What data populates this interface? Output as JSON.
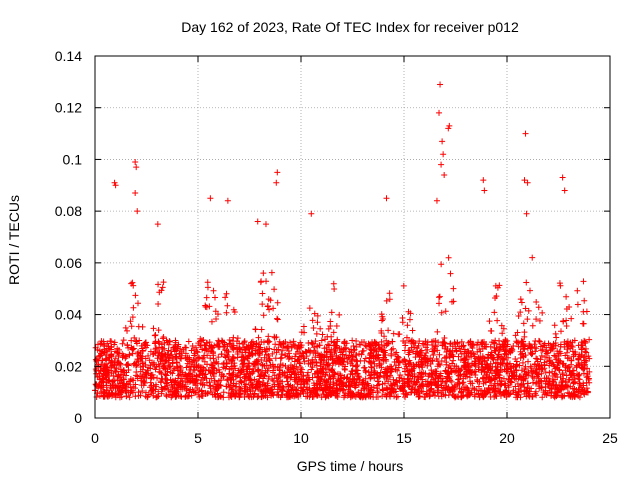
{
  "chart_data": {
    "type": "scatter",
    "title": "Day 162 of 2023, Rate Of TEC Index for receiver p012",
    "xlabel": "GPS time / hours",
    "ylabel": "ROTI / TECUs",
    "xlim": [
      0,
      25
    ],
    "ylim": [
      0,
      0.14
    ],
    "x_ticks": [
      0,
      5,
      10,
      15,
      20,
      25
    ],
    "x_tick_labels": [
      "0",
      "5",
      "10",
      "15",
      "20",
      "25"
    ],
    "y_ticks": [
      0,
      0.02,
      0.04,
      0.06,
      0.08,
      0.1,
      0.12,
      0.14
    ],
    "y_tick_labels": [
      "0",
      "0.02",
      "0.04",
      "0.06",
      "0.08",
      "0.1",
      "0.12",
      "0.14"
    ],
    "grid": true,
    "marker": "+",
    "marker_color": "#ff0000",
    "data_range_x": [
      0,
      24
    ],
    "baseline_band": [
      0.008,
      0.03
    ],
    "outliers": [
      {
        "x": 16.75,
        "y": 0.129
      },
      {
        "x": 16.7,
        "y": 0.118
      },
      {
        "x": 17.2,
        "y": 0.113
      },
      {
        "x": 17.15,
        "y": 0.112
      },
      {
        "x": 20.9,
        "y": 0.11
      },
      {
        "x": 16.85,
        "y": 0.107
      },
      {
        "x": 16.9,
        "y": 0.102
      },
      {
        "x": 16.8,
        "y": 0.098
      },
      {
        "x": 1.95,
        "y": 0.099
      },
      {
        "x": 2.0,
        "y": 0.097
      },
      {
        "x": 8.85,
        "y": 0.095
      },
      {
        "x": 14.15,
        "y": 0.085
      },
      {
        "x": 16.95,
        "y": 0.094
      },
      {
        "x": 18.85,
        "y": 0.092
      },
      {
        "x": 22.7,
        "y": 0.093
      },
      {
        "x": 20.85,
        "y": 0.092
      },
      {
        "x": 21.0,
        "y": 0.091
      },
      {
        "x": 0.95,
        "y": 0.091
      },
      {
        "x": 1.0,
        "y": 0.09
      },
      {
        "x": 8.8,
        "y": 0.091
      },
      {
        "x": 18.9,
        "y": 0.088
      },
      {
        "x": 22.8,
        "y": 0.088
      },
      {
        "x": 1.95,
        "y": 0.087
      },
      {
        "x": 5.6,
        "y": 0.085
      },
      {
        "x": 6.45,
        "y": 0.084
      },
      {
        "x": 16.6,
        "y": 0.084
      },
      {
        "x": 2.05,
        "y": 0.08
      },
      {
        "x": 10.5,
        "y": 0.079
      },
      {
        "x": 20.95,
        "y": 0.079
      },
      {
        "x": 3.05,
        "y": 0.075
      },
      {
        "x": 7.9,
        "y": 0.076
      },
      {
        "x": 8.3,
        "y": 0.075
      }
    ]
  }
}
